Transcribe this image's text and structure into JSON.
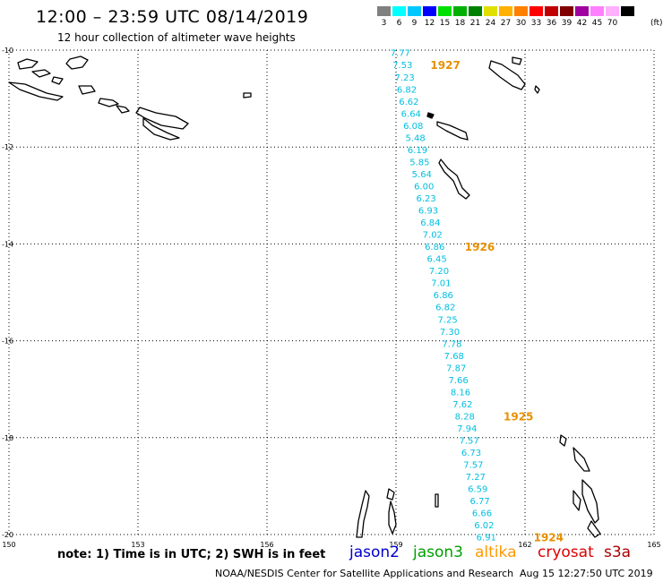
{
  "header": {
    "title": "12:00 – 23:59 UTC 08/14/2019",
    "subtitle": "12 hour collection of altimeter wave heights"
  },
  "colorbar": {
    "colors": [
      "#808080",
      "#00ffff",
      "#00c8ff",
      "#0000ff",
      "#00e000",
      "#00b000",
      "#008000",
      "#e0e000",
      "#ffb000",
      "#ff8000",
      "#ff0000",
      "#c00000",
      "#800000",
      "#a000a0",
      "#ff80ff",
      "#ffb0ff",
      "#000000"
    ],
    "labels": [
      "3",
      "6",
      "9",
      "12",
      "15",
      "18",
      "21",
      "24",
      "27",
      "30",
      "33",
      "36",
      "39",
      "42",
      "45",
      "70"
    ],
    "unit": "(ft)"
  },
  "chart_data": {
    "type": "map",
    "xlim": [
      150,
      165
    ],
    "ylim": [
      -20,
      -10
    ],
    "x_ticks": [
      "150",
      "153",
      "156",
      "159",
      "162",
      "165"
    ],
    "y_ticks": [
      "-10",
      "-12",
      "-14",
      "-16",
      "-18",
      "-20"
    ],
    "grid": true,
    "track_color": "#00bfe0",
    "time_label_color": "#e89000",
    "wave_heights": [
      {
        "lon": 159.1,
        "lat": -10.05,
        "ft": "7.77"
      },
      {
        "lon": 159.15,
        "lat": -10.3,
        "ft": "7.53"
      },
      {
        "lon": 159.2,
        "lat": -10.55,
        "ft": "7.23"
      },
      {
        "lon": 159.25,
        "lat": -10.8,
        "ft": "6.82"
      },
      {
        "lon": 159.3,
        "lat": -11.05,
        "ft": "6.62"
      },
      {
        "lon": 159.35,
        "lat": -11.3,
        "ft": "6.64"
      },
      {
        "lon": 159.4,
        "lat": -11.55,
        "ft": "6.08"
      },
      {
        "lon": 159.45,
        "lat": -11.8,
        "ft": "5.48"
      },
      {
        "lon": 159.5,
        "lat": -12.05,
        "ft": "6.19"
      },
      {
        "lon": 159.55,
        "lat": -12.3,
        "ft": "5.85"
      },
      {
        "lon": 159.6,
        "lat": -12.55,
        "ft": "5.64"
      },
      {
        "lon": 159.65,
        "lat": -12.8,
        "ft": "6.00"
      },
      {
        "lon": 159.7,
        "lat": -13.05,
        "ft": "6.23"
      },
      {
        "lon": 159.75,
        "lat": -13.3,
        "ft": "6.93"
      },
      {
        "lon": 159.8,
        "lat": -13.55,
        "ft": "6.84"
      },
      {
        "lon": 159.85,
        "lat": -13.8,
        "ft": "7.02"
      },
      {
        "lon": 159.9,
        "lat": -14.05,
        "ft": "6.86"
      },
      {
        "lon": 159.95,
        "lat": -14.3,
        "ft": "6.45"
      },
      {
        "lon": 160.0,
        "lat": -14.55,
        "ft": "7.20"
      },
      {
        "lon": 160.05,
        "lat": -14.8,
        "ft": "7.01"
      },
      {
        "lon": 160.1,
        "lat": -15.05,
        "ft": "6.86"
      },
      {
        "lon": 160.15,
        "lat": -15.3,
        "ft": "6.82"
      },
      {
        "lon": 160.2,
        "lat": -15.55,
        "ft": "7.25"
      },
      {
        "lon": 160.25,
        "lat": -15.8,
        "ft": "7.30"
      },
      {
        "lon": 160.3,
        "lat": -16.05,
        "ft": "7.78"
      },
      {
        "lon": 160.35,
        "lat": -16.3,
        "ft": "7.68"
      },
      {
        "lon": 160.4,
        "lat": -16.55,
        "ft": "7.87"
      },
      {
        "lon": 160.45,
        "lat": -16.8,
        "ft": "7.66"
      },
      {
        "lon": 160.5,
        "lat": -17.05,
        "ft": "8.16"
      },
      {
        "lon": 160.55,
        "lat": -17.3,
        "ft": "7.62"
      },
      {
        "lon": 160.6,
        "lat": -17.55,
        "ft": "8.28"
      },
      {
        "lon": 160.65,
        "lat": -17.8,
        "ft": "7.94"
      },
      {
        "lon": 160.7,
        "lat": -18.05,
        "ft": "7.57"
      },
      {
        "lon": 160.75,
        "lat": -18.3,
        "ft": "6.73"
      },
      {
        "lon": 160.8,
        "lat": -18.55,
        "ft": "7.57"
      },
      {
        "lon": 160.85,
        "lat": -18.8,
        "ft": "7.27"
      },
      {
        "lon": 160.9,
        "lat": -19.05,
        "ft": "6.59"
      },
      {
        "lon": 160.95,
        "lat": -19.3,
        "ft": "6.77"
      },
      {
        "lon": 161.0,
        "lat": -19.55,
        "ft": "6.66"
      },
      {
        "lon": 161.05,
        "lat": -19.8,
        "ft": "6.02"
      },
      {
        "lon": 161.1,
        "lat": -20.05,
        "ft": "6.91"
      }
    ],
    "time_labels": [
      {
        "lon": 159.8,
        "lat": -10.3,
        "text": "1927"
      },
      {
        "lon": 160.6,
        "lat": -14.05,
        "text": "1926"
      },
      {
        "lon": 161.5,
        "lat": -17.55,
        "text": "1925"
      },
      {
        "lon": 162.2,
        "lat": -20.05,
        "text": "1924"
      }
    ]
  },
  "footer": {
    "note": "note:  1) Time is in UTC;  2) SWH is in feet",
    "satellites": [
      {
        "name": "jason2",
        "color": "#0000cc"
      },
      {
        "name": "jason3",
        "color": "#00a000"
      },
      {
        "name": "altika",
        "color": "#ff9900"
      },
      {
        "name": "cryosat",
        "color": "#dd0000"
      },
      {
        "name": "s3a",
        "color": "#aa0000"
      }
    ],
    "credit": "NOAA/NESDIS Center for Satellite Applications and Research",
    "timestamp": "Aug 15 12:27:50 UTC 2019"
  }
}
